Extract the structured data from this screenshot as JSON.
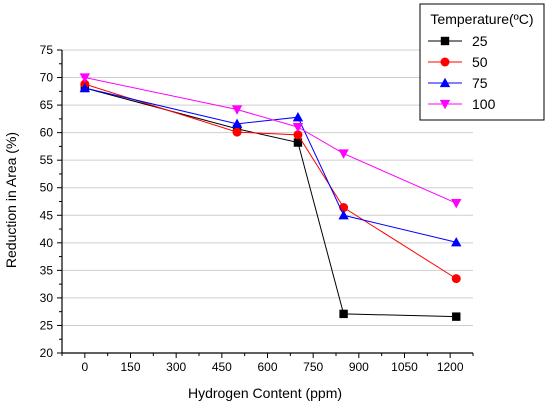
{
  "chart_data": {
    "type": "line",
    "xlabel": "Hydrogen Content (ppm)",
    "ylabel": "Reduction in Area (%)",
    "xlim": [
      -75,
      1275
    ],
    "ylim": [
      20,
      75
    ],
    "xticks": [
      0,
      150,
      300,
      450,
      600,
      750,
      900,
      1050,
      1200
    ],
    "yticks": [
      20,
      25,
      30,
      35,
      40,
      45,
      50,
      55,
      60,
      65,
      70,
      75
    ],
    "grid": true,
    "legend": {
      "title": "Temperature(ºC)",
      "placement": "top-right, outside plot"
    },
    "x": [
      0,
      500,
      700,
      850,
      1220
    ],
    "series": [
      {
        "name": "25",
        "values": [
          68.1,
          60.7,
          58.2,
          27.1,
          26.6
        ],
        "color": "#000000",
        "marker": "square"
      },
      {
        "name": "50",
        "values": [
          68.8,
          60.1,
          59.6,
          46.4,
          33.5
        ],
        "color": "#ff0000",
        "marker": "circle"
      },
      {
        "name": "75",
        "values": [
          68.1,
          61.6,
          62.8,
          45.0,
          40.1
        ],
        "color": "#0000ff",
        "marker": "triangle-up"
      },
      {
        "name": "100",
        "values": [
          70.0,
          64.2,
          61.0,
          56.2,
          47.2
        ],
        "color": "#ff00ff",
        "marker": "triangle-down"
      }
    ]
  }
}
